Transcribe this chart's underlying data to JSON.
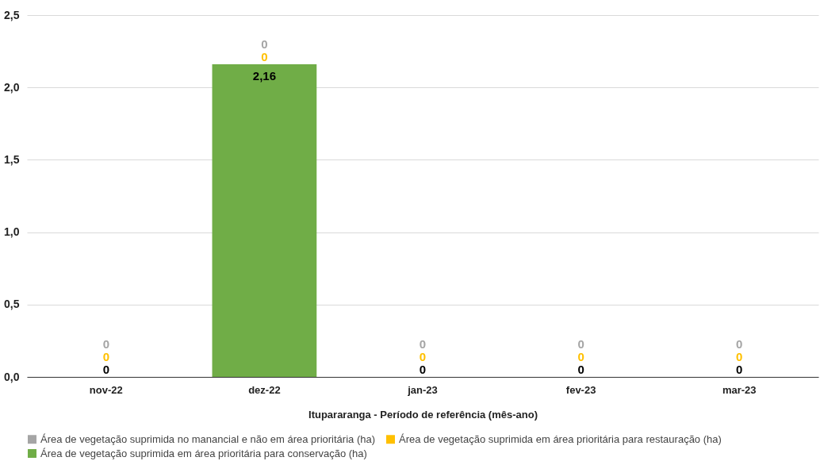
{
  "chart_data": {
    "type": "bar",
    "stacked": true,
    "xlabel": "Itupararanga - Período de referência (mês-ano)",
    "categories": [
      "nov-22",
      "dez-22",
      "jan-23",
      "fev-23",
      "mar-23"
    ],
    "series": [
      {
        "name": "Área de vegetação suprimida em área prioritária para conservação (ha)",
        "color": "#70ad47",
        "values": [
          0,
          2.16,
          0,
          0,
          0
        ],
        "value_labels": [
          "0",
          "2,16",
          "0",
          "0",
          "0"
        ]
      },
      {
        "name": "Área de vegetação suprimida em área prioritária para restauração (ha)",
        "color": "#ffc000",
        "values": [
          0,
          0,
          0,
          0,
          0
        ],
        "value_labels": [
          "0",
          "0",
          "0",
          "0",
          "0"
        ]
      },
      {
        "name": "Área de vegetação suprimida no manancial e não em área prioritária (ha)",
        "color": "#a5a5a5",
        "values": [
          0,
          0,
          0,
          0,
          0
        ],
        "value_labels": [
          "0",
          "0",
          "0",
          "0",
          "0"
        ]
      }
    ],
    "ylim": [
      0,
      2.5
    ],
    "yticks": [
      {
        "value": 0,
        "label": "0,0"
      },
      {
        "value": 0.5,
        "label": "0,5"
      },
      {
        "value": 1,
        "label": "1,0"
      },
      {
        "value": 1.5,
        "label": "1,5"
      },
      {
        "value": 2,
        "label": "2,0"
      },
      {
        "value": 2.5,
        "label": "2,5"
      }
    ],
    "grid": "y",
    "legend": "bottom"
  }
}
